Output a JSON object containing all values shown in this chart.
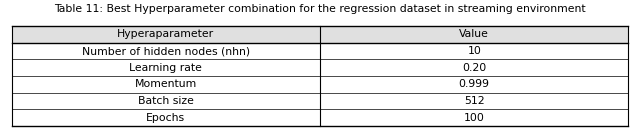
{
  "title": "Table 11: Best Hyperparameter combination for the regression dataset in streaming environment",
  "col_headers": [
    "Hyperaparameter",
    "Value"
  ],
  "rows": [
    [
      "Number of hidden nodes (nhn)",
      "10"
    ],
    [
      "Learning rate",
      "0.20"
    ],
    [
      "Momentum",
      "0.999"
    ],
    [
      "Batch size",
      "512"
    ],
    [
      "Epochs",
      "100"
    ]
  ],
  "bg_color": "#ffffff",
  "header_bg": "#e0e0e0",
  "line_color": "#000000",
  "title_fontsize": 7.8,
  "cell_fontsize": 7.8,
  "title_color": "#000000",
  "text_color": "#000000",
  "fig_width": 6.4,
  "fig_height": 1.3,
  "fig_dpi": 100
}
